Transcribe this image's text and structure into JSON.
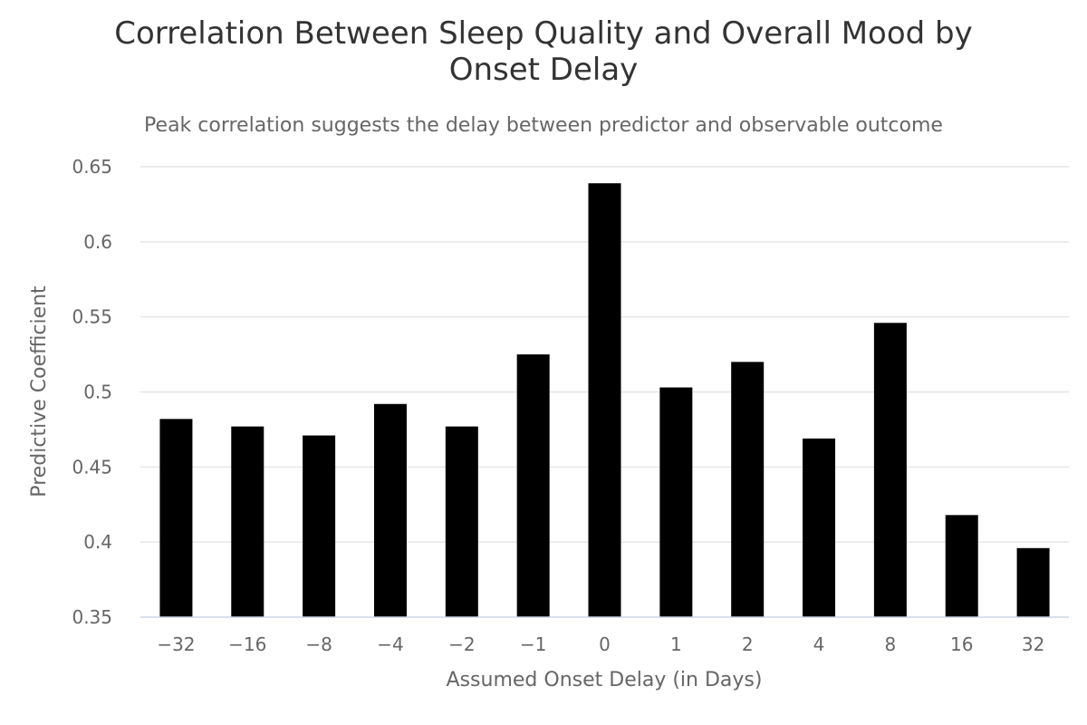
{
  "chart_data": {
    "type": "bar",
    "title_lines": [
      "Correlation Between Sleep Quality and Overall Mood by",
      "Onset Delay"
    ],
    "subtitle": "Peak correlation suggests the delay between predictor and observable outcome",
    "xlabel": "Assumed Onset Delay (in Days)",
    "ylabel": "Predictive Coefficient",
    "categories": [
      "−32",
      "−16",
      "−8",
      "−4",
      "−2",
      "−1",
      "0",
      "1",
      "2",
      "4",
      "8",
      "16",
      "32"
    ],
    "values": [
      0.482,
      0.477,
      0.471,
      0.492,
      0.477,
      0.525,
      0.639,
      0.503,
      0.52,
      0.469,
      0.546,
      0.418,
      0.396
    ],
    "ylim": [
      0.35,
      0.65
    ],
    "yticks": [
      "0.35",
      "0.4",
      "0.45",
      "0.5",
      "0.55",
      "0.6",
      "0.65"
    ],
    "grid": true,
    "legend": "none",
    "bar_color": "#000000"
  }
}
